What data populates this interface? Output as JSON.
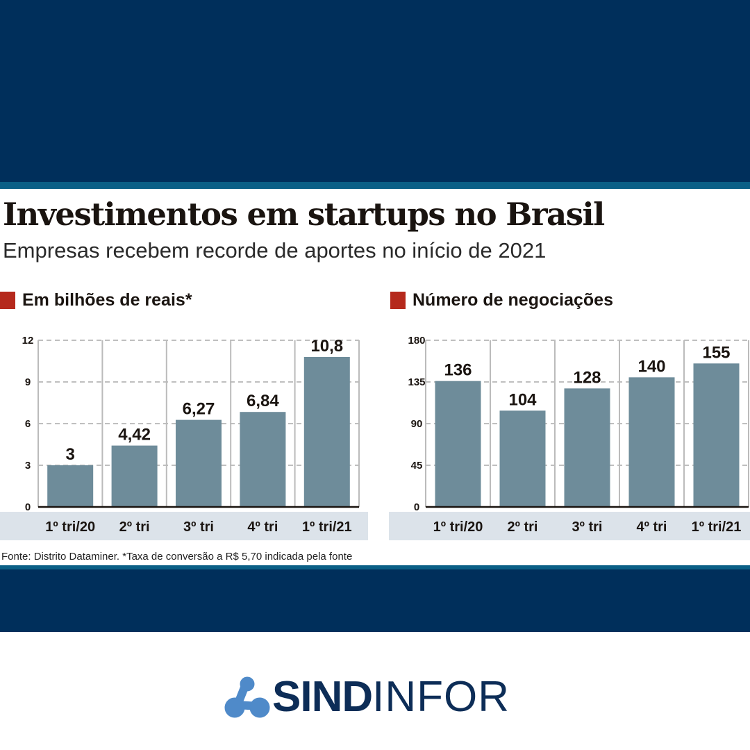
{
  "title": "Investimentos em startups no Brasil",
  "subtitle": "Empresas recebem recorde de aportes no início de 2021",
  "source": "Fonte: Distrito Dataminer. *Taxa de conversão a R$ 5,70 indicada pela fonte",
  "logo": {
    "bold": "SIND",
    "light": "INFOR"
  },
  "colors": {
    "bar": "#6e8c9a",
    "section_marker": "#b5291c",
    "navy": "#002f5b",
    "category_band": "#dce3ea",
    "logo_icon": "#4f8ac9"
  },
  "chart_data": [
    {
      "type": "bar",
      "title": "Em bilhões de reais*",
      "categories": [
        "1º tri/20",
        "2º tri",
        "3º tri",
        "4º tri",
        "1º tri/21"
      ],
      "values": [
        3,
        4.42,
        6.27,
        6.84,
        10.8
      ],
      "labels": [
        "3",
        "4,42",
        "6,27",
        "6,84",
        "10,8"
      ],
      "yticks": [
        "0",
        "3",
        "6",
        "9",
        "12"
      ],
      "ylim": [
        0,
        12
      ],
      "grid": true
    },
    {
      "type": "bar",
      "title": "Número de negociações",
      "categories": [
        "1º tri/20",
        "2º tri",
        "3º tri",
        "4º tri",
        "1º tri/21"
      ],
      "values": [
        136,
        104,
        128,
        140,
        155
      ],
      "labels": [
        "136",
        "104",
        "128",
        "140",
        "155"
      ],
      "yticks": [
        "0",
        "45",
        "90",
        "135",
        "180"
      ],
      "ylim": [
        0,
        180
      ],
      "grid": true
    }
  ]
}
